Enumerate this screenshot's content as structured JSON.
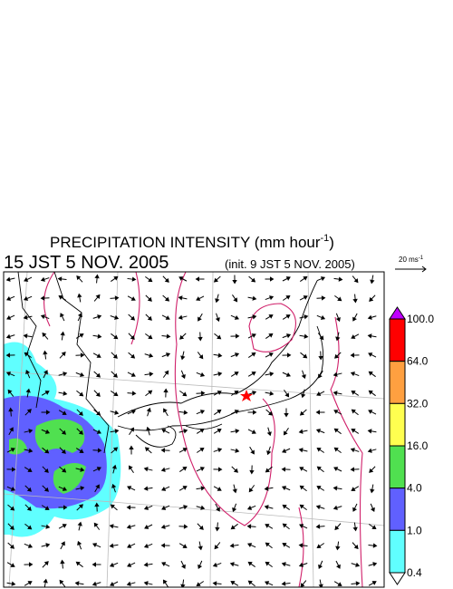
{
  "header": {
    "title": "PRECIPITATION INTENSITY (mm hour",
    "title_superscript": "-1",
    "title_suffix": ")",
    "valid_time": "15 JST 5 NOV. 2005",
    "init_time": "(init. 9 JST 5 NOV. 2005)"
  },
  "vector_scale": {
    "text": "20 ms",
    "superscript": "-1"
  },
  "colorbar": {
    "labels": [
      "100.0",
      "64.0",
      "32.0",
      "16.0",
      "4.0",
      "1.0",
      "0.4"
    ],
    "colors": [
      "#ff0000",
      "#ffa040",
      "#ffff50",
      "#50e050",
      "#6060ff",
      "#60ffff"
    ],
    "over_color": "#c000ff",
    "under_color": "#ffffff"
  }
}
